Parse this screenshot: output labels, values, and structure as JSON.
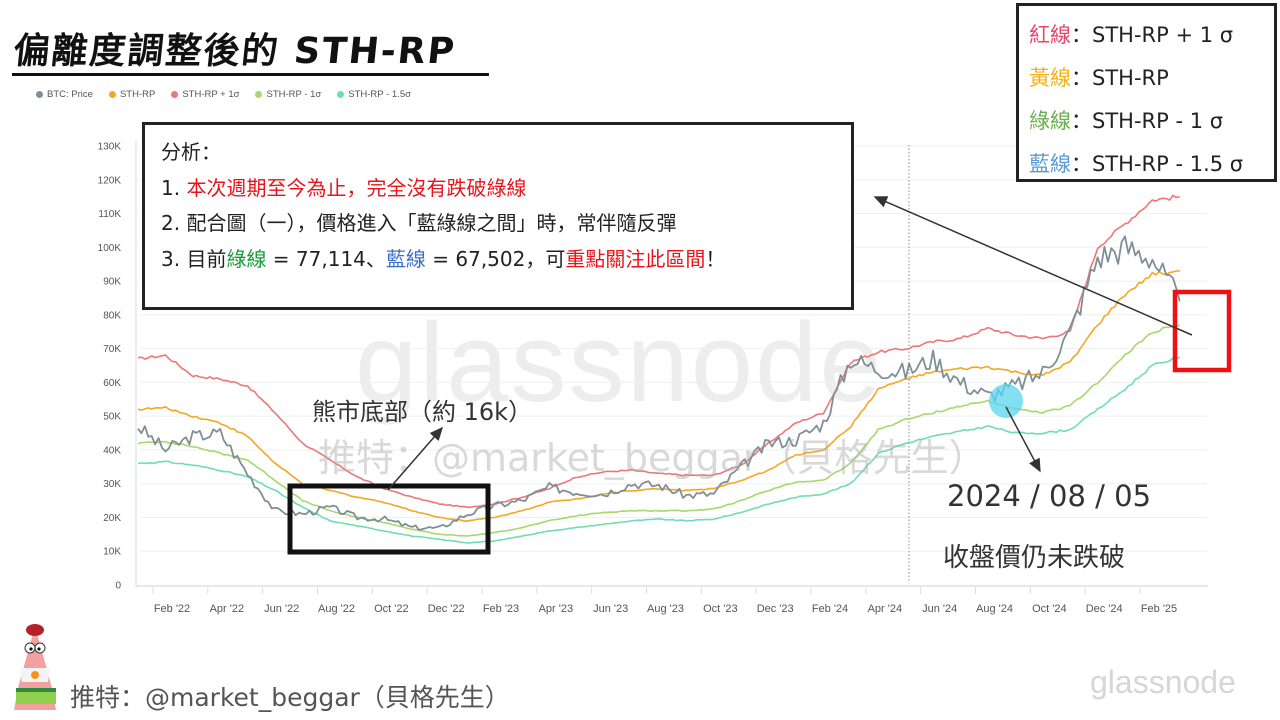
{
  "title": "偏離度調整後的 STH-RP",
  "legend": [
    {
      "label": "BTC: Price",
      "color": "#7f8f96"
    },
    {
      "label": "STH-RP",
      "color": "#f5a623"
    },
    {
      "label": "STH-RP + 1σ",
      "color": "#ef7677"
    },
    {
      "label": "STH-RP - 1σ",
      "color": "#a6d86b"
    },
    {
      "label": "STH-RP - 1.5σ",
      "color": "#6fddb3"
    }
  ],
  "key_box": {
    "rows": [
      {
        "name": "紅線",
        "sep": "：",
        "desc": "STH-RP + 1 σ",
        "color": "#e8466a"
      },
      {
        "name": "黃線",
        "sep": "：",
        "desc": "STH-RP",
        "color": "#f5b21a"
      },
      {
        "name": "綠線",
        "sep": "：",
        "desc": "STH-RP - 1 σ",
        "color": "#6ab04c"
      },
      {
        "name": "藍線",
        "sep": "：",
        "desc": "STH-RP - 1.5 σ",
        "color": "#5b9bd5"
      }
    ]
  },
  "analysis": {
    "heading": "分析：",
    "line1_num": "1. ",
    "line1_text": "本次週期至今為止，完全沒有跌破綠線",
    "line2": "2. 配合圖（一），價格進入「藍綠線之間」時，常伴隨反彈",
    "line3_num": "3. 目前",
    "line3_green": "綠線",
    "line3_mid": " = 77,114、",
    "line3_blue": "藍線",
    "line3_mid2": " = 67,502，可",
    "line3_red": "重點關注此區間",
    "line3_end": "！"
  },
  "annotations": {
    "bear_bottom": "熊市底部（約 16k）",
    "date": "2024 / 08 / 05",
    "date_note": "收盤價仍未跌破"
  },
  "watermark": {
    "big": "glassnode",
    "small": "推特：@market_beggar（貝格先生）"
  },
  "footer": {
    "text": "推特：@market_beggar（貝格先生）",
    "brand": "glassnode"
  },
  "chart_data": {
    "type": "line",
    "title": "偏離度調整後的 STH-RP",
    "xlabel": "",
    "ylabel": "",
    "ylim": [
      0,
      130000
    ],
    "y_ticks": [
      "0",
      "10K",
      "20K",
      "30K",
      "40K",
      "50K",
      "60K",
      "70K",
      "80K",
      "90K",
      "100K",
      "110K",
      "120K",
      "130K"
    ],
    "x_ticks": [
      "Feb '22",
      "Apr '22",
      "Jun '22",
      "Aug '22",
      "Oct '22",
      "Dec '22",
      "Feb '23",
      "Apr '23",
      "Jun '23",
      "Aug '23",
      "Oct '23",
      "Dec '23",
      "Feb '24",
      "Apr '24",
      "Jun '24",
      "Aug '24",
      "Oct '24",
      "Dec '24",
      "Feb '25"
    ],
    "grid": true,
    "legend_position": "top-left",
    "x": [
      "Jan '22",
      "Feb '22",
      "Mar '22",
      "Apr '22",
      "May '22",
      "Jun '22",
      "Jul '22",
      "Aug '22",
      "Sep '22",
      "Oct '22",
      "Nov '22",
      "Dec '22",
      "Jan '23",
      "Feb '23",
      "Mar '23",
      "Apr '23",
      "May '23",
      "Jun '23",
      "Jul '23",
      "Aug '23",
      "Sep '23",
      "Oct '23",
      "Nov '23",
      "Dec '23",
      "Jan '24",
      "Feb '24",
      "Mar '24",
      "Apr '24",
      "May '24",
      "Jun '24",
      "Jul '24",
      "Aug '24",
      "Sep '24",
      "Oct '24",
      "Nov '24",
      "Dec '24",
      "Jan '25",
      "Feb '25",
      "Mar '25"
    ],
    "series": [
      {
        "name": "BTC: Price",
        "color": "#7f8f96",
        "values": [
          47000,
          40000,
          44000,
          45000,
          33000,
          22000,
          21000,
          23000,
          20000,
          19500,
          17000,
          16800,
          21000,
          23500,
          25000,
          29000,
          27500,
          27000,
          30000,
          29500,
          26500,
          27000,
          35000,
          42000,
          43000,
          48000,
          67000,
          64000,
          63000,
          67000,
          60000,
          56000,
          59000,
          63000,
          75000,
          97000,
          100000,
          97000,
          84000
        ]
      },
      {
        "name": "STH-RP",
        "color": "#f5a623",
        "values": [
          52000,
          52500,
          50000,
          48000,
          44000,
          36000,
          30000,
          28000,
          26000,
          24500,
          22000,
          20000,
          19000,
          20000,
          22000,
          24500,
          25500,
          27000,
          28000,
          28500,
          28000,
          28500,
          31000,
          34000,
          38500,
          40000,
          47000,
          58000,
          61000,
          63000,
          64000,
          64500,
          63000,
          62000,
          66000,
          77000,
          86000,
          92000,
          93000
        ]
      },
      {
        "name": "STH-RP + 1σ",
        "color": "#ef7677",
        "values": [
          67000,
          68000,
          62000,
          61000,
          59000,
          51000,
          42000,
          37000,
          32000,
          28500,
          26000,
          24000,
          23000,
          24000,
          26000,
          28500,
          32000,
          33500,
          34000,
          33000,
          32500,
          32500,
          35500,
          42000,
          48000,
          51000,
          66000,
          69000,
          70000,
          72000,
          73000,
          76000,
          74000,
          73000,
          75000,
          100000,
          107000,
          114000,
          115000
        ]
      },
      {
        "name": "STH-RP - 1σ",
        "color": "#a6d86b",
        "values": [
          42000,
          42500,
          41000,
          39000,
          37000,
          31000,
          25000,
          22000,
          20000,
          18500,
          16500,
          15000,
          14500,
          15500,
          17000,
          19000,
          20500,
          21500,
          22000,
          22000,
          22000,
          22500,
          25000,
          28000,
          30500,
          31000,
          36000,
          46000,
          49000,
          51000,
          53000,
          54500,
          52000,
          51000,
          53000,
          60000,
          68000,
          75000,
          77000
        ]
      },
      {
        "name": "STH-RP - 1.5σ",
        "color": "#6fddb3",
        "values": [
          36000,
          36500,
          35500,
          34000,
          32000,
          28000,
          23000,
          19000,
          17500,
          16000,
          14500,
          13500,
          12500,
          13000,
          14500,
          16000,
          17000,
          18000,
          19000,
          19500,
          19000,
          19500,
          21500,
          24000,
          26000,
          27000,
          30000,
          39000,
          42000,
          44000,
          45500,
          47000,
          45000,
          45000,
          46000,
          52000,
          58000,
          65000,
          67500
        ]
      }
    ],
    "annotations": [
      {
        "text": "熊市底部（約 16k）",
        "target": "Jun '22 – Jan '23"
      },
      {
        "text": "2024 / 08 / 05 收盤價仍未跌破",
        "target": "Aug '24"
      },
      {
        "text": "綠線 = 77,114",
        "target": "Mar '25"
      },
      {
        "text": "藍線 = 67,502",
        "target": "Mar '25"
      }
    ]
  }
}
